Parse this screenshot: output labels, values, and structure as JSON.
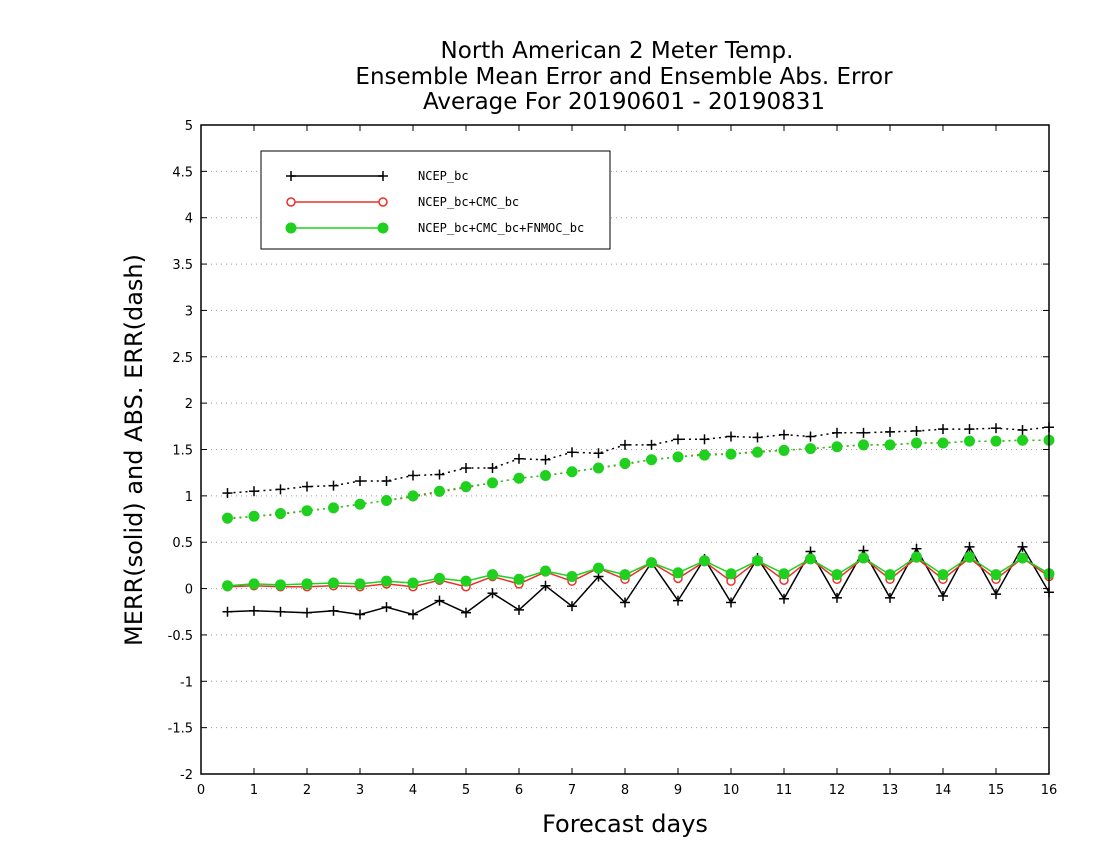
{
  "chart_data": {
    "type": "line",
    "title_lines": [
      "North American 2 Meter Temp.",
      "Ensemble Mean Error and Ensemble Abs. Error",
      "Average For 20190601 - 20190831"
    ],
    "xlabel": "Forecast days",
    "ylabel": "MERR(solid) and ABS. ERR(dash)",
    "xlim": [
      0,
      16
    ],
    "ylim": [
      -2,
      5
    ],
    "xticks": [
      0,
      1,
      2,
      3,
      4,
      5,
      6,
      7,
      8,
      9,
      10,
      11,
      12,
      13,
      14,
      15,
      16
    ],
    "yticks": [
      -2,
      -1.5,
      -1,
      -0.5,
      0,
      0.5,
      1,
      1.5,
      2,
      2.5,
      3,
      3.5,
      4,
      4.5,
      5
    ],
    "ytick_labels": [
      "-2",
      "-1.5",
      "-1",
      "-0.5",
      "0",
      "0.5",
      "1",
      "1.5",
      "2",
      "2.5",
      "3",
      "3.5",
      "4",
      "4.5",
      "5"
    ],
    "grid": "horizontal dotted",
    "legend_position": "top-left",
    "x": [
      0.5,
      1.0,
      1.5,
      2.0,
      2.5,
      3.0,
      3.5,
      4.0,
      4.5,
      5.0,
      5.5,
      6.0,
      6.5,
      7.0,
      7.5,
      8.0,
      8.5,
      9.0,
      9.5,
      10.0,
      10.5,
      11.0,
      11.5,
      12.0,
      12.5,
      13.0,
      13.5,
      14.0,
      14.5,
      15.0,
      15.5,
      16.0
    ],
    "series": [
      {
        "name": "NCEP_bc",
        "color": "#000000",
        "marker": "plus",
        "merr": [
          -0.25,
          -0.24,
          -0.25,
          -0.26,
          -0.24,
          -0.28,
          -0.2,
          -0.28,
          -0.13,
          -0.26,
          -0.05,
          -0.23,
          0.03,
          -0.19,
          0.13,
          -0.15,
          0.28,
          -0.13,
          0.32,
          -0.15,
          0.33,
          -0.11,
          0.4,
          -0.1,
          0.41,
          -0.1,
          0.43,
          -0.08,
          0.45,
          -0.06,
          0.45,
          -0.04
        ],
        "abs_err": [
          1.03,
          1.05,
          1.07,
          1.1,
          1.11,
          1.16,
          1.16,
          1.22,
          1.23,
          1.3,
          1.3,
          1.4,
          1.39,
          1.47,
          1.46,
          1.55,
          1.55,
          1.61,
          1.61,
          1.64,
          1.63,
          1.66,
          1.64,
          1.68,
          1.68,
          1.69,
          1.7,
          1.72,
          1.72,
          1.73,
          1.71,
          1.74
        ]
      },
      {
        "name": "NCEP_bc+CMC_bc",
        "color": "#e8312a",
        "marker": "open-circle",
        "merr": [
          0.02,
          0.03,
          0.02,
          0.02,
          0.03,
          0.02,
          0.05,
          0.02,
          0.09,
          0.02,
          0.13,
          0.05,
          0.18,
          0.08,
          0.22,
          0.1,
          0.28,
          0.11,
          0.29,
          0.08,
          0.3,
          0.09,
          0.32,
          0.1,
          0.33,
          0.1,
          0.33,
          0.1,
          0.33,
          0.1,
          0.33,
          0.13
        ],
        "abs_err": [
          0.75,
          0.78,
          0.8,
          0.84,
          0.87,
          0.91,
          0.95,
          0.99,
          1.04,
          1.09,
          1.14,
          1.19,
          1.22,
          1.26,
          1.3,
          1.34,
          1.39,
          1.42,
          1.45,
          1.45,
          1.48,
          1.49,
          1.51,
          1.53,
          1.55,
          1.55,
          1.57,
          1.57,
          1.59,
          1.59,
          1.6,
          1.6
        ]
      },
      {
        "name": "NCEP_bc+CMC_bc+FNMOC_bc",
        "color": "#1fd01f",
        "marker": "filled-circle",
        "merr": [
          0.03,
          0.05,
          0.04,
          0.05,
          0.06,
          0.05,
          0.08,
          0.06,
          0.11,
          0.08,
          0.15,
          0.1,
          0.19,
          0.13,
          0.22,
          0.15,
          0.28,
          0.17,
          0.3,
          0.16,
          0.3,
          0.16,
          0.32,
          0.15,
          0.33,
          0.15,
          0.34,
          0.15,
          0.34,
          0.15,
          0.33,
          0.16
        ],
        "abs_err": [
          0.76,
          0.78,
          0.81,
          0.84,
          0.87,
          0.91,
          0.95,
          1.0,
          1.05,
          1.1,
          1.14,
          1.19,
          1.22,
          1.26,
          1.3,
          1.35,
          1.39,
          1.42,
          1.44,
          1.45,
          1.47,
          1.49,
          1.51,
          1.53,
          1.55,
          1.55,
          1.57,
          1.57,
          1.59,
          1.59,
          1.6,
          1.6
        ]
      }
    ]
  }
}
